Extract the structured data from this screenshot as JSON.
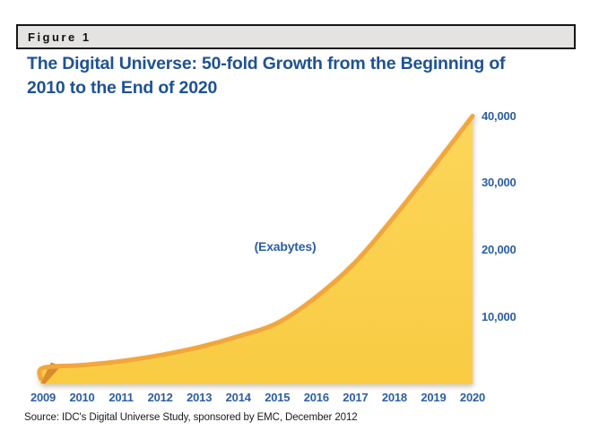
{
  "figure": {
    "label": "Figure 1",
    "title": "The Digital Universe: 50-fold Growth from the Beginning of\n2010 to the End of 2020"
  },
  "source_note": "Source: IDC's Digital Universe Study, sponsored by EMC, December 2012",
  "colors": {
    "title_blue": "#1e5296",
    "label_blue": "#2b5ea6",
    "area_fill_top": "#fcd65a",
    "area_fill_bottom": "#f9cb43",
    "area_stroke": "#f2a63c",
    "area_bevel": "#d88c2c",
    "figure_bar_bg": "#e4e3e2",
    "figure_bar_border": "#161616"
  },
  "chart_data": {
    "type": "area",
    "title": "The Digital Universe: 50-fold Growth from the Beginning of 2010 to the End of 2020",
    "units_label": "(Exabytes)",
    "categories": [
      "2009",
      "2010",
      "2011",
      "2012",
      "2013",
      "2014",
      "2015",
      "2016",
      "2017",
      "2018",
      "2019",
      "2020"
    ],
    "values": [
      2400,
      2800,
      3400,
      4300,
      5500,
      7100,
      9100,
      13000,
      18200,
      25000,
      32400,
      40000
    ],
    "xlabel": "",
    "ylabel": "Exabytes",
    "ylim": [
      0,
      40000
    ],
    "yticks": [
      10000,
      20000,
      30000,
      40000
    ],
    "ytick_labels": [
      "10,000",
      "20,000",
      "30,000",
      "40,000"
    ],
    "grid": false,
    "legend": false,
    "y_axis_side": "right",
    "note": "values estimated from plotted curve; axis maximum 40,000 exabytes at end of 2020"
  }
}
